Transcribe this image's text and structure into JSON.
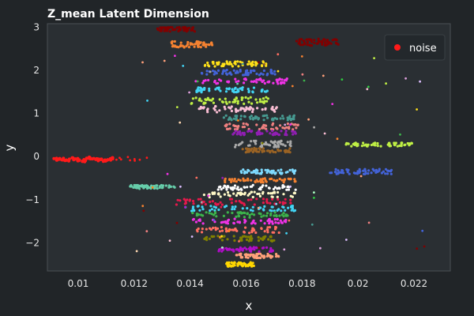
{
  "chart_data": {
    "type": "scatter",
    "title": "Z_mean Latent Dimension",
    "xlabel": "x",
    "ylabel": "y",
    "xlim": [
      0.0089,
      0.0233
    ],
    "ylim": [
      -2.65,
      3.08
    ],
    "xticks": [
      0.01,
      0.012,
      0.014,
      0.016,
      0.018,
      0.02,
      0.022
    ],
    "xtick_labels": [
      "0.01",
      "0.012",
      "0.014",
      "0.016",
      "0.018",
      "0.02",
      "0.022"
    ],
    "yticks": [
      3,
      2,
      1,
      0,
      -1,
      -2
    ],
    "ytick_labels": [
      "3",
      "2",
      "1",
      "0",
      "−1",
      "−2"
    ],
    "grid": false,
    "legend": {
      "placement": "top-right",
      "entries": [
        {
          "name": "noise",
          "color": "#ff1a1a"
        }
      ]
    },
    "colors": {
      "background": "#212528",
      "plot_background": "#2a2f33",
      "noise": "#ff1a1a",
      "palette": [
        "#e6194b",
        "#f58231",
        "#ffe119",
        "#bfef45",
        "#3cb44b",
        "#42d4f4",
        "#4363d8",
        "#911eb4",
        "#f032e6",
        "#fabed4",
        "#469990",
        "#dcbeff",
        "#9a6324",
        "#fffac8",
        "#800000",
        "#aaffc3",
        "#808000",
        "#ffd8b1",
        "#a9a9a9",
        "#ff6f61",
        "#7fdbff",
        "#b10dc9",
        "#2ecc40",
        "#ff851b",
        "#f08080",
        "#ffa07a",
        "#66cdaa",
        "#dda0dd"
      ]
    },
    "series": [
      {
        "role": "noise",
        "color": "#ff1a1a",
        "points": [
          [
            0.0092,
            -0.07
          ],
          [
            0.0094,
            -0.06
          ],
          [
            0.0096,
            -0.08
          ],
          [
            0.0098,
            -0.05
          ],
          [
            0.01,
            -0.07
          ],
          [
            0.0102,
            -0.09
          ],
          [
            0.0104,
            -0.04
          ],
          [
            0.0106,
            -0.06
          ],
          [
            0.0108,
            -0.08
          ],
          [
            0.011,
            -0.1
          ],
          [
            0.0112,
            -0.05
          ]
        ]
      },
      {
        "role": "band",
        "color": "#800000",
        "xrange": [
          0.0128,
          0.0142
        ],
        "y": 2.95,
        "spread": 0.05
      },
      {
        "role": "band",
        "color": "#f58231",
        "xrange": [
          0.0133,
          0.0148
        ],
        "y": 2.6,
        "spread": 0.07
      },
      {
        "role": "band",
        "color": "#ffe119",
        "xrange": [
          0.0145,
          0.0168
        ],
        "y": 2.15,
        "spread": 0.06
      },
      {
        "role": "band",
        "color": "#4363d8",
        "xrange": [
          0.0144,
          0.0172
        ],
        "y": 1.95,
        "spread": 0.06
      },
      {
        "role": "band",
        "color": "#f032e6",
        "xrange": [
          0.0142,
          0.0175
        ],
        "y": 1.75,
        "spread": 0.06
      },
      {
        "role": "band",
        "color": "#42d4f4",
        "xrange": [
          0.0142,
          0.017
        ],
        "y": 1.55,
        "spread": 0.06
      },
      {
        "role": "band",
        "color": "#bfef45",
        "xrange": [
          0.014,
          0.0168
        ],
        "y": 1.3,
        "spread": 0.08
      },
      {
        "role": "band",
        "color": "#fabed4",
        "xrange": [
          0.0143,
          0.0172
        ],
        "y": 1.1,
        "spread": 0.07
      },
      {
        "role": "band",
        "color": "#469990",
        "xrange": [
          0.0152,
          0.0178
        ],
        "y": 0.9,
        "spread": 0.06
      },
      {
        "role": "band",
        "color": "#f08080",
        "xrange": [
          0.0152,
          0.018
        ],
        "y": 0.7,
        "spread": 0.07
      },
      {
        "role": "band",
        "color": "#911eb4",
        "xrange": [
          0.0155,
          0.0178
        ],
        "y": 0.55,
        "spread": 0.05
      },
      {
        "role": "band",
        "color": "#a9a9a9",
        "xrange": [
          0.0156,
          0.0176
        ],
        "y": 0.3,
        "spread": 0.08
      },
      {
        "role": "band",
        "color": "#9a6324",
        "xrange": [
          0.0158,
          0.0176
        ],
        "y": 0.15,
        "spread": 0.05
      },
      {
        "role": "band",
        "color": "#bfef45",
        "xrange": [
          0.0195,
          0.022
        ],
        "y": 0.28,
        "spread": 0.04
      },
      {
        "role": "band",
        "color": "#7fdbff",
        "xrange": [
          0.0158,
          0.0178
        ],
        "y": -0.35,
        "spread": 0.05
      },
      {
        "role": "band",
        "color": "#f58231",
        "xrange": [
          0.0152,
          0.0178
        ],
        "y": -0.55,
        "spread": 0.05
      },
      {
        "role": "band",
        "color": "#ffffff",
        "xrange": [
          0.015,
          0.0178
        ],
        "y": -0.72,
        "spread": 0.06
      },
      {
        "role": "band",
        "color": "#fffac8",
        "xrange": [
          0.0145,
          0.0178
        ],
        "y": -0.88,
        "spread": 0.06
      },
      {
        "role": "band",
        "color": "#e6194b",
        "xrange": [
          0.0135,
          0.0178
        ],
        "y": -1.05,
        "spread": 0.07
      },
      {
        "role": "band",
        "color": "#42d4f4",
        "xrange": [
          0.0138,
          0.0178
        ],
        "y": -1.2,
        "spread": 0.06
      },
      {
        "role": "band",
        "color": "#3cb44b",
        "xrange": [
          0.014,
          0.0175
        ],
        "y": -1.35,
        "spread": 0.06
      },
      {
        "role": "band",
        "color": "#f032e6",
        "xrange": [
          0.014,
          0.0175
        ],
        "y": -1.5,
        "spread": 0.06
      },
      {
        "role": "band",
        "color": "#ff6f61",
        "xrange": [
          0.0142,
          0.0172
        ],
        "y": -1.7,
        "spread": 0.07
      },
      {
        "role": "band",
        "color": "#808000",
        "xrange": [
          0.0145,
          0.017
        ],
        "y": -1.9,
        "spread": 0.06
      },
      {
        "role": "band",
        "color": "#b10dc9",
        "xrange": [
          0.015,
          0.017
        ],
        "y": -2.15,
        "spread": 0.05
      },
      {
        "role": "band",
        "color": "#ffa07a",
        "xrange": [
          0.0155,
          0.0172
        ],
        "y": -2.3,
        "spread": 0.05
      },
      {
        "role": "band",
        "color": "#ffd700",
        "xrange": [
          0.0153,
          0.0163
        ],
        "y": -2.5,
        "spread": 0.05
      },
      {
        "role": "band",
        "color": "#66cdaa",
        "xrange": [
          0.0118,
          0.0135
        ],
        "y": -0.7,
        "spread": 0.04
      },
      {
        "role": "band",
        "color": "#800000",
        "xrange": [
          0.0178,
          0.0193
        ],
        "y": 2.65,
        "spread": 0.08
      },
      {
        "role": "band",
        "color": "#4363d8",
        "xrange": [
          0.019,
          0.0212
        ],
        "y": -0.35,
        "spread": 0.06
      }
    ]
  }
}
